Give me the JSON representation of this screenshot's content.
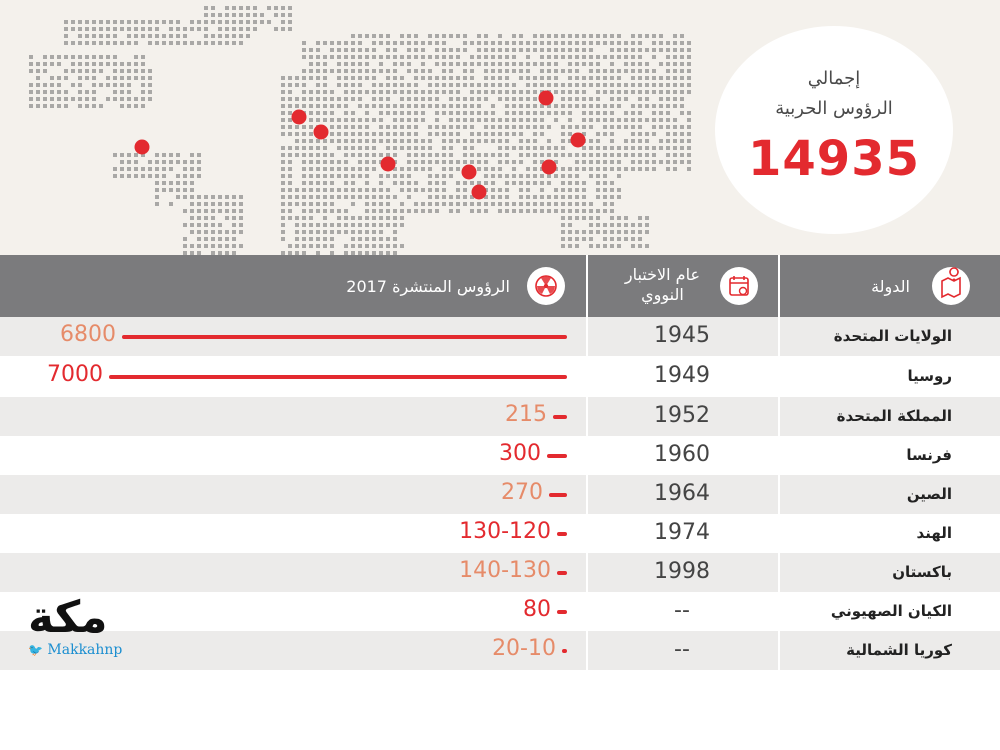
{
  "total": {
    "label_line1": "إجمالي",
    "label_line2": "الرؤوس الحربية",
    "value": "14935"
  },
  "header": {
    "country": "الدولة",
    "test_year_line1": "عام الاختبار",
    "test_year_line2": "النووي",
    "warheads": "الرؤوس المنتشرة 2017"
  },
  "rows": [
    {
      "country": "الولايات المتحدة",
      "year": "1945",
      "count": "6800",
      "bar_value": 6800,
      "emphasis": false
    },
    {
      "country": "روسيا",
      "year": "1949",
      "count": "7000",
      "bar_value": 7000,
      "emphasis": true
    },
    {
      "country": "المملكة المتحدة",
      "year": "1952",
      "count": "215",
      "bar_value": 215,
      "emphasis": false
    },
    {
      "country": "فرنسا",
      "year": "1960",
      "count": "300",
      "bar_value": 300,
      "emphasis": true
    },
    {
      "country": "الصين",
      "year": "1964",
      "count": "270",
      "bar_value": 270,
      "emphasis": false
    },
    {
      "country": "الهند",
      "year": "1974",
      "count": "130-120",
      "bar_value": 125,
      "emphasis": true
    },
    {
      "country": "باكستان",
      "year": "1998",
      "count": "140-130",
      "bar_value": 135,
      "emphasis": false
    },
    {
      "country": "الكيان الصهيوني",
      "year": "--",
      "count": "80",
      "bar_value": 80,
      "emphasis": true
    },
    {
      "country": "كوريا الشمالية",
      "year": "--",
      "count": "20-10",
      "bar_value": 15,
      "emphasis": false
    }
  ],
  "logo": {
    "text": "مكة",
    "handle": "Makkahnp"
  },
  "colors": {
    "accent_red": "#e32a2f",
    "header_gray": "#7b7b7d",
    "count_orange": "#e68b69"
  },
  "icons": [
    "map-pin-icon",
    "calendar-icon",
    "radiation-icon",
    "twitter-bird-icon"
  ]
}
